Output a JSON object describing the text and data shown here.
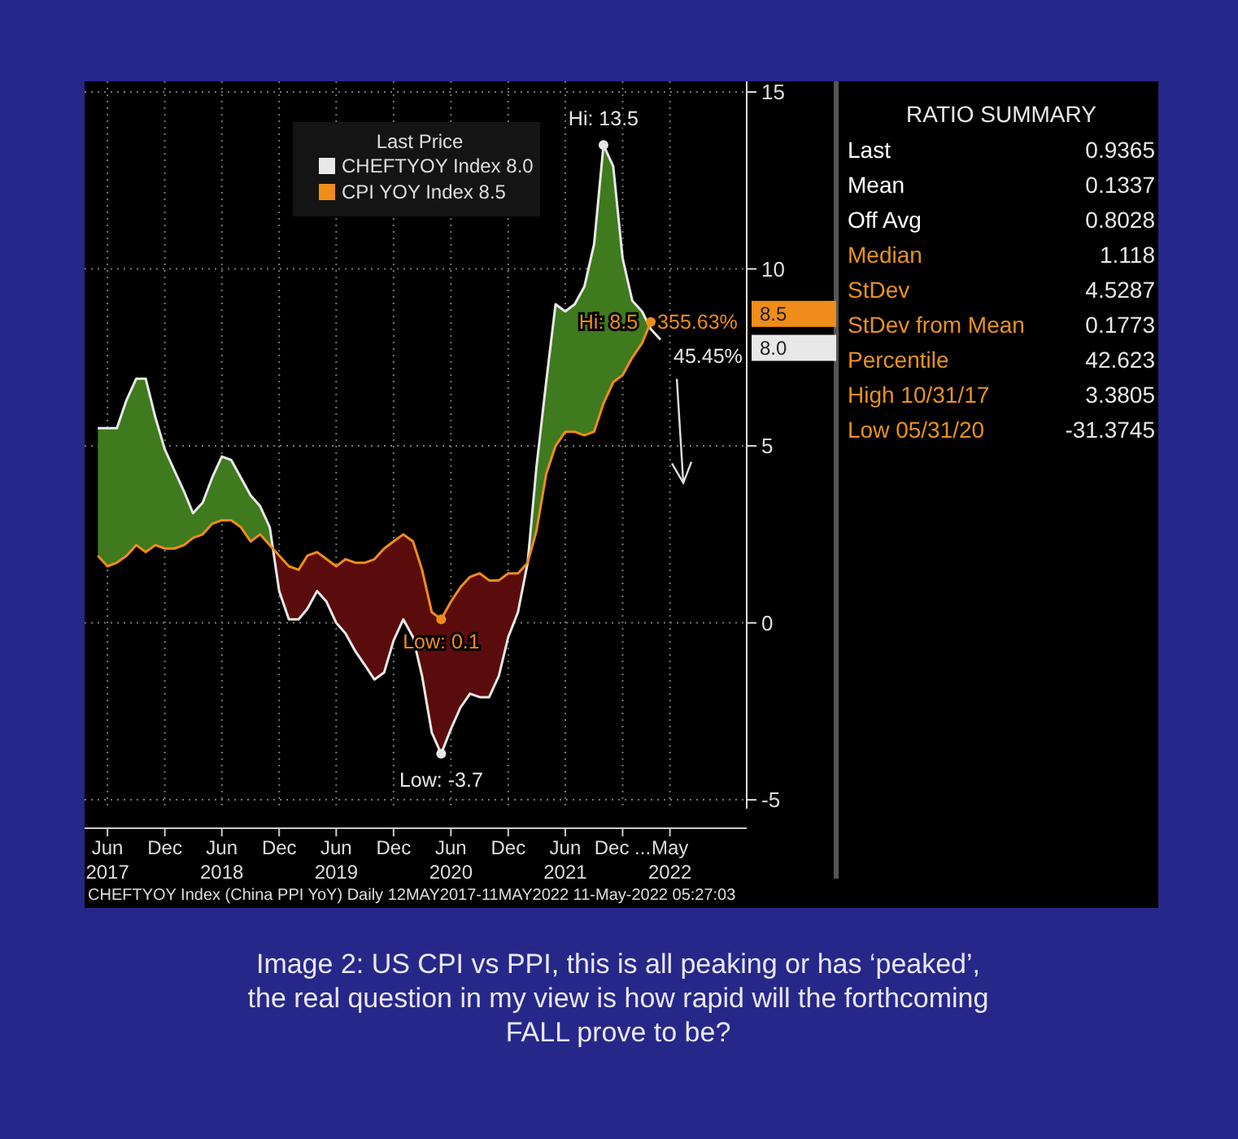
{
  "chart_data": [
    {
      "type": "line",
      "legend_title": "Last Price",
      "legend": "top left",
      "grid": true,
      "marker": "none",
      "line_style": "solid",
      "x": [
        "2017-05",
        "2017-06",
        "2017-07",
        "2017-08",
        "2017-09",
        "2017-10",
        "2017-11",
        "2017-12",
        "2018-01",
        "2018-02",
        "2018-03",
        "2018-04",
        "2018-05",
        "2018-06",
        "2018-07",
        "2018-08",
        "2018-09",
        "2018-10",
        "2018-11",
        "2018-12",
        "2019-01",
        "2019-02",
        "2019-03",
        "2019-04",
        "2019-05",
        "2019-06",
        "2019-07",
        "2019-08",
        "2019-09",
        "2019-10",
        "2019-11",
        "2019-12",
        "2020-01",
        "2020-02",
        "2020-03",
        "2020-04",
        "2020-05",
        "2020-06",
        "2020-07",
        "2020-08",
        "2020-09",
        "2020-10",
        "2020-11",
        "2020-12",
        "2021-01",
        "2021-02",
        "2021-03",
        "2021-04",
        "2021-05",
        "2021-06",
        "2021-07",
        "2021-08",
        "2021-09",
        "2021-10",
        "2021-11",
        "2021-12",
        "2022-01",
        "2022-02",
        "2022-03",
        "2022-04"
      ],
      "series": [
        {
          "name": "CHEFTYOY Index 8.0",
          "color": "#e8e8e8",
          "values": [
            5.5,
            5.5,
            5.5,
            6.3,
            6.9,
            6.9,
            5.8,
            4.9,
            4.3,
            3.7,
            3.1,
            3.4,
            4.1,
            4.7,
            4.6,
            4.1,
            3.6,
            3.3,
            2.7,
            0.9,
            0.1,
            0.1,
            0.4,
            0.9,
            0.6,
            0.0,
            -0.3,
            -0.8,
            -1.2,
            -1.6,
            -1.4,
            -0.5,
            0.1,
            -0.4,
            -1.5,
            -3.1,
            -3.7,
            -3.0,
            -2.4,
            -2.0,
            -2.1,
            -2.1,
            -1.5,
            -0.4,
            0.3,
            1.7,
            4.4,
            6.8,
            9.0,
            8.8,
            9.0,
            9.5,
            10.7,
            13.5,
            12.9,
            10.3,
            9.1,
            8.8,
            8.3,
            8.0
          ],
          "upper": [
            5.5,
            5.5,
            5.5,
            6.3,
            6.9,
            6.9,
            5.8,
            4.9,
            4.3,
            3.7,
            3.1,
            3.4,
            4.1,
            4.7,
            4.6,
            4.1,
            3.6,
            3.3,
            2.7,
            0.9,
            0.1,
            0.1,
            0.4,
            0.9,
            0.6,
            0.0,
            -0.3,
            -0.8,
            -1.2,
            -1.6,
            -1.4,
            -0.5,
            0.1,
            -0.4,
            -1.5,
            -3.1,
            -3.7,
            -3.0,
            -2.4,
            -2.0,
            -2.1,
            -2.1,
            -1.5,
            -0.4,
            0.3,
            1.7,
            4.4,
            6.8,
            9.0,
            8.8,
            9.0,
            9.5,
            10.7,
            13.5,
            12.9,
            10.3,
            9.1,
            8.8,
            8.3,
            null
          ],
          "lower": [
            1.9,
            1.6,
            1.7,
            1.9,
            2.2,
            2.0,
            2.2,
            2.1,
            2.1,
            2.2,
            2.4,
            2.5,
            2.8,
            2.9,
            2.9,
            2.7,
            2.3,
            2.5,
            2.2,
            1.9,
            1.6,
            1.5,
            1.9,
            2.0,
            1.8,
            1.6,
            1.8,
            1.7,
            1.7,
            1.8,
            2.1,
            2.3,
            2.5,
            2.3,
            1.5,
            0.3,
            0.1,
            0.6,
            1.0,
            1.3,
            1.4,
            1.2,
            1.2,
            1.4,
            1.4,
            1.7,
            2.6,
            4.2,
            5.0,
            5.4,
            5.4,
            5.3,
            5.4,
            6.2,
            6.8,
            7.0,
            7.5,
            7.9,
            8.5,
            null
          ]
        },
        {
          "name": "CPI YOY Index 8.5",
          "color": "#f08c1a",
          "values": [
            1.9,
            1.6,
            1.7,
            1.9,
            2.2,
            2.0,
            2.2,
            2.1,
            2.1,
            2.2,
            2.4,
            2.5,
            2.8,
            2.9,
            2.9,
            2.7,
            2.3,
            2.5,
            2.2,
            1.9,
            1.6,
            1.5,
            1.9,
            2.0,
            1.8,
            1.6,
            1.8,
            1.7,
            1.7,
            1.8,
            2.1,
            2.3,
            2.5,
            2.3,
            1.5,
            0.3,
            0.1,
            0.6,
            1.0,
            1.3,
            1.4,
            1.2,
            1.2,
            1.4,
            1.4,
            1.7,
            2.6,
            4.2,
            5.0,
            5.4,
            5.4,
            5.3,
            5.4,
            6.2,
            6.8,
            7.0,
            7.5,
            7.9,
            8.5,
            null
          ]
        }
      ],
      "xlim": [
        "2017-03-20",
        "2023-01-01"
      ],
      "xticks": [
        {
          "value": "2017-06",
          "label": "Jun\n2017"
        },
        {
          "value": "2017-12",
          "label": "Dec"
        },
        {
          "value": "2018-06",
          "label": "Jun\n2018"
        },
        {
          "value": "2018-12",
          "label": "Dec"
        },
        {
          "value": "2019-06",
          "label": "Jun\n2019"
        },
        {
          "value": "2019-12",
          "label": "Dec"
        },
        {
          "value": "2020-06",
          "label": "Jun\n2020"
        },
        {
          "value": "2020-12",
          "label": "Dec"
        },
        {
          "value": "2021-06",
          "label": "Jun\n2021"
        },
        {
          "value": "2021-12",
          "label": "Dec ..."
        },
        {
          "value": "2022-05",
          "label": "May\n2022"
        }
      ],
      "ylim": [
        -5.25,
        15.3
      ],
      "yticks": [
        -5,
        0,
        5,
        10,
        15
      ],
      "annotations": [
        "CHEFTYOY Index (China PPI YoY)  Daily 12MAY2017-11MAY2022   11-May-2022 05:27:03",
        "Image 2: US CPI vs PPI, this is all peaking or has ‘peaked’, the real question in my view is how rapid will the forthcoming FALL prove to be?",
        {
          "text": "Hi: 13.5",
          "x": "2021-10",
          "y": 13.5
        },
        {
          "text": "Low: -3.7",
          "x": "2020-05",
          "y": -3.7
        },
        {
          "text": "Hi: 8.5",
          "x": "2022-03",
          "y": 8.5
        },
        {
          "text": "Low: 0.1",
          "x": "2020-05",
          "y": 0.1
        },
        {
          "text": "355.63%",
          "x": "2022-03",
          "y": 8.5
        },
        {
          "text": "45.45%",
          "x": "2022-04",
          "y": 8.0
        },
        "8.0",
        "8.5"
      ]
    },
    {
      "type": "other",
      "title": "RATIO SUMMARY",
      "data_labels": true,
      "categories": [
        "Last",
        "Mean",
        "Off Avg",
        "Median",
        "StDev",
        "StDev from Mean",
        "Percentile",
        "High 10/31/17",
        "Low 05/31/20"
      ],
      "values": [
        0.9365,
        0.1337,
        0.8028,
        1.118,
        4.5287,
        0.1773,
        42.623,
        3.3805,
        -31.3745
      ],
      "colors": [
        "#ffffff",
        "#ffffff",
        "#ffffff",
        "#e8921e",
        "#e8921e",
        "#e8921e",
        "#e8921e",
        "#e8921e",
        "#e8921e"
      ]
    }
  ]
}
